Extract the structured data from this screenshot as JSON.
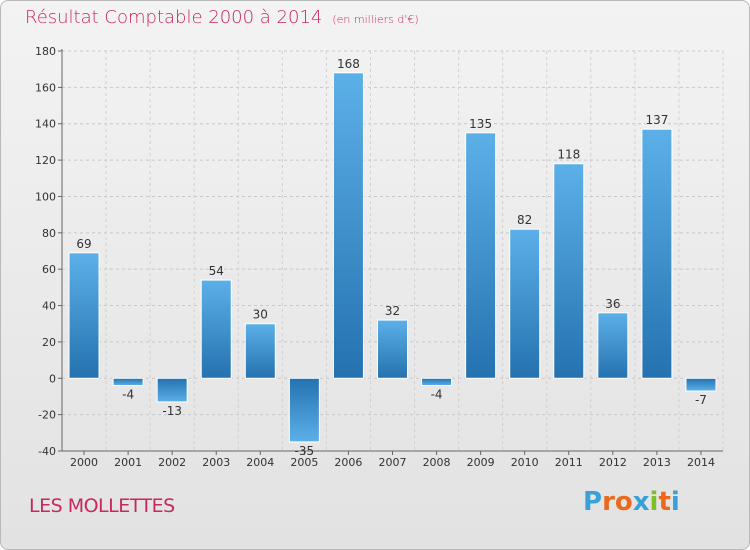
{
  "title": "Résultat Comptable 2000 à 2014",
  "unit": "(en milliers d'€)",
  "commune": "LES MOLLETTES",
  "logo": {
    "text": "Proxiti",
    "colors": [
      "#3aa0d8",
      "#e96a1e",
      "#e96a1e",
      "#3aa0d8",
      "#7bbf2a",
      "#e96a1e",
      "#3aa0d8"
    ]
  },
  "colors": {
    "accent": "#c8275f",
    "bar_light": "#5cb0e8",
    "bar_dark": "#2472b0"
  },
  "chart_data": {
    "type": "bar",
    "title": "Résultat Comptable 2000 à 2014",
    "xlabel": "",
    "ylabel": "",
    "categories": [
      "2000",
      "2001",
      "2002",
      "2003",
      "2004",
      "2005",
      "2006",
      "2007",
      "2008",
      "2009",
      "2010",
      "2011",
      "2012",
      "2013",
      "2014"
    ],
    "values": [
      69,
      -4,
      -13,
      54,
      30,
      -35,
      168,
      32,
      -4,
      135,
      82,
      118,
      36,
      137,
      -7
    ],
    "ylim": [
      -40,
      180
    ],
    "yticks": [
      -40,
      -20,
      0,
      20,
      40,
      60,
      80,
      100,
      120,
      140,
      160,
      180
    ],
    "grid": "horizontal dashed"
  }
}
